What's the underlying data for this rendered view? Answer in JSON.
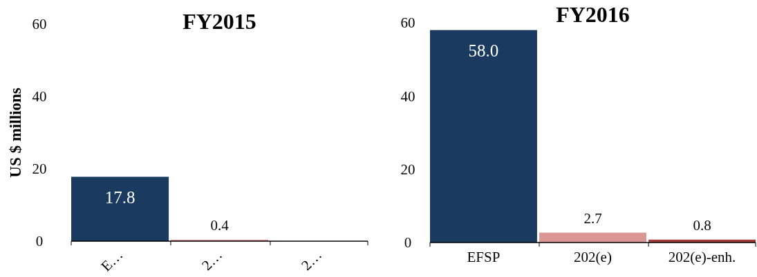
{
  "chart_data": [
    {
      "type": "bar",
      "title": "FY2015",
      "ylabel": "US $ millions",
      "categories": [
        "E…",
        "2…",
        "2…"
      ],
      "values": [
        17.8,
        0.4,
        0
      ],
      "colors": [
        "#1a3a5f",
        "#d99694",
        "#a03a36"
      ],
      "value_labels": [
        "17.8",
        "0.4",
        null
      ],
      "ylim": [
        0,
        60
      ],
      "yticks": [
        0,
        20,
        40,
        60
      ],
      "grid": false
    },
    {
      "type": "bar",
      "title": "FY2016",
      "categories": [
        "EFSP",
        "202(e)",
        "202(e)-enh."
      ],
      "values": [
        58.0,
        2.7,
        0.8
      ],
      "colors": [
        "#1a3a5f",
        "#d99694",
        "#a03a36"
      ],
      "value_labels": [
        "58.0",
        "2.7",
        "0.8"
      ],
      "ylim": [
        0,
        60
      ],
      "yticks": [
        0,
        20,
        40,
        60
      ],
      "grid": false
    }
  ]
}
